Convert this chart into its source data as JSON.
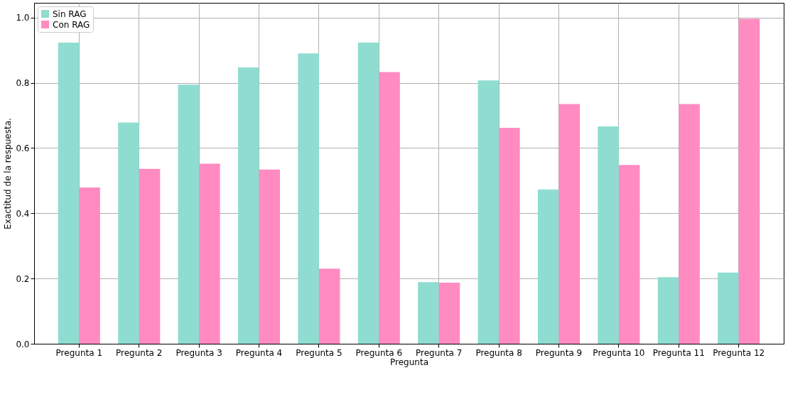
{
  "chart_data": {
    "type": "bar",
    "xlabel": "Pregunta",
    "ylabel": "Exactitud de la respuesta.",
    "categories": [
      "Pregunta 1",
      "Pregunta 2",
      "Pregunta 3",
      "Pregunta 4",
      "Pregunta 5",
      "Pregunta 6",
      "Pregunta 7",
      "Pregunta 8",
      "Pregunta 9",
      "Pregunta 10",
      "Pregunta 11",
      "Pregunta 12"
    ],
    "series": [
      {
        "name": "Sin RAG",
        "color": "#8fddd0",
        "values": [
          0.923,
          0.678,
          0.794,
          0.847,
          0.89,
          0.923,
          0.189,
          0.807,
          0.473,
          0.666,
          0.204,
          0.218
        ]
      },
      {
        "name": "Con RAG",
        "color": "#ff8bc1",
        "values": [
          0.479,
          0.536,
          0.552,
          0.534,
          0.23,
          0.833,
          0.187,
          0.662,
          0.735,
          0.548,
          0.735,
          0.996
        ]
      }
    ],
    "ylim": [
      0,
      1.045
    ],
    "yticks": [
      {
        "value": 0,
        "label": "0.0"
      },
      {
        "value": 0.2,
        "label": "0.2"
      },
      {
        "value": 0.4,
        "label": "0.4"
      },
      {
        "value": 0.6,
        "label": "0.6"
      },
      {
        "value": 0.8,
        "label": "0.8"
      },
      {
        "value": 1,
        "label": "1.0"
      }
    ],
    "grid": true,
    "legend": "top left"
  }
}
